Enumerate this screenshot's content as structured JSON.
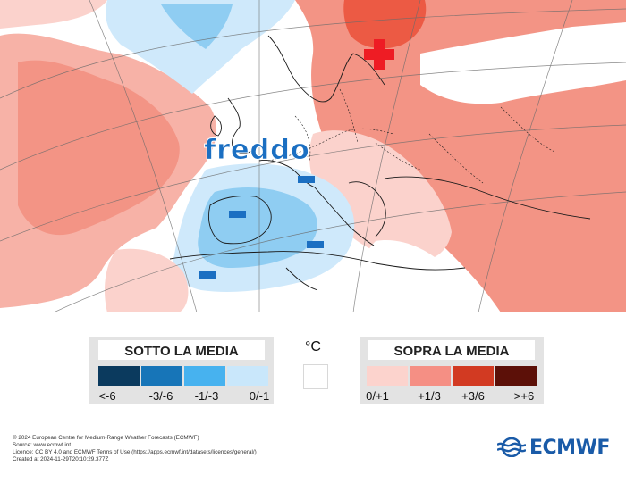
{
  "map": {
    "annotation_label": "freddo",
    "warm_marker": "plus-sign",
    "cold_marker": "minus-sign",
    "colors": {
      "warm_light": "#fbd2cc",
      "warm_mid": "#f4998d",
      "warm_strong": "#ec5a44",
      "cold_light": "#cfe9fb",
      "cold_mid": "#8fcdf2",
      "accent_blue": "#1b6fc2",
      "accent_red": "#ee1c24"
    }
  },
  "legend": {
    "unit": "°C",
    "below": {
      "title": "SOTTO LA MEDIA",
      "bins": [
        {
          "label": "<-6",
          "color": "#0b3a5e"
        },
        {
          "label": "-3/-6",
          "color": "#1775b8"
        },
        {
          "label": "-1/-3",
          "color": "#47b2ef"
        },
        {
          "label": "0/-1",
          "color": "#c9e7fb"
        }
      ]
    },
    "neutral_color": "#ffffff",
    "above": {
      "title": "SOPRA LA MEDIA",
      "bins": [
        {
          "label": "0/+1",
          "color": "#fcd3cd"
        },
        {
          "label": "+1/3",
          "color": "#f58f84"
        },
        {
          "label": "+3/6",
          "color": "#d23a22"
        },
        {
          "label": ">+6",
          "color": "#5c1008"
        }
      ]
    }
  },
  "credits": {
    "line1": "© 2024 European Centre for Medium-Range Weather Forecasts (ECMWF)",
    "line2": "Source: www.ecmwf.int",
    "line3": "Licence: CC BY 4.0 and ECMWF Terms of Use (https://apps.ecmwf.int/datasets/licences/general/)",
    "line4": "Created at 2024-11-29T20:10:29.377Z"
  },
  "logo": {
    "text": "ECMWF"
  }
}
